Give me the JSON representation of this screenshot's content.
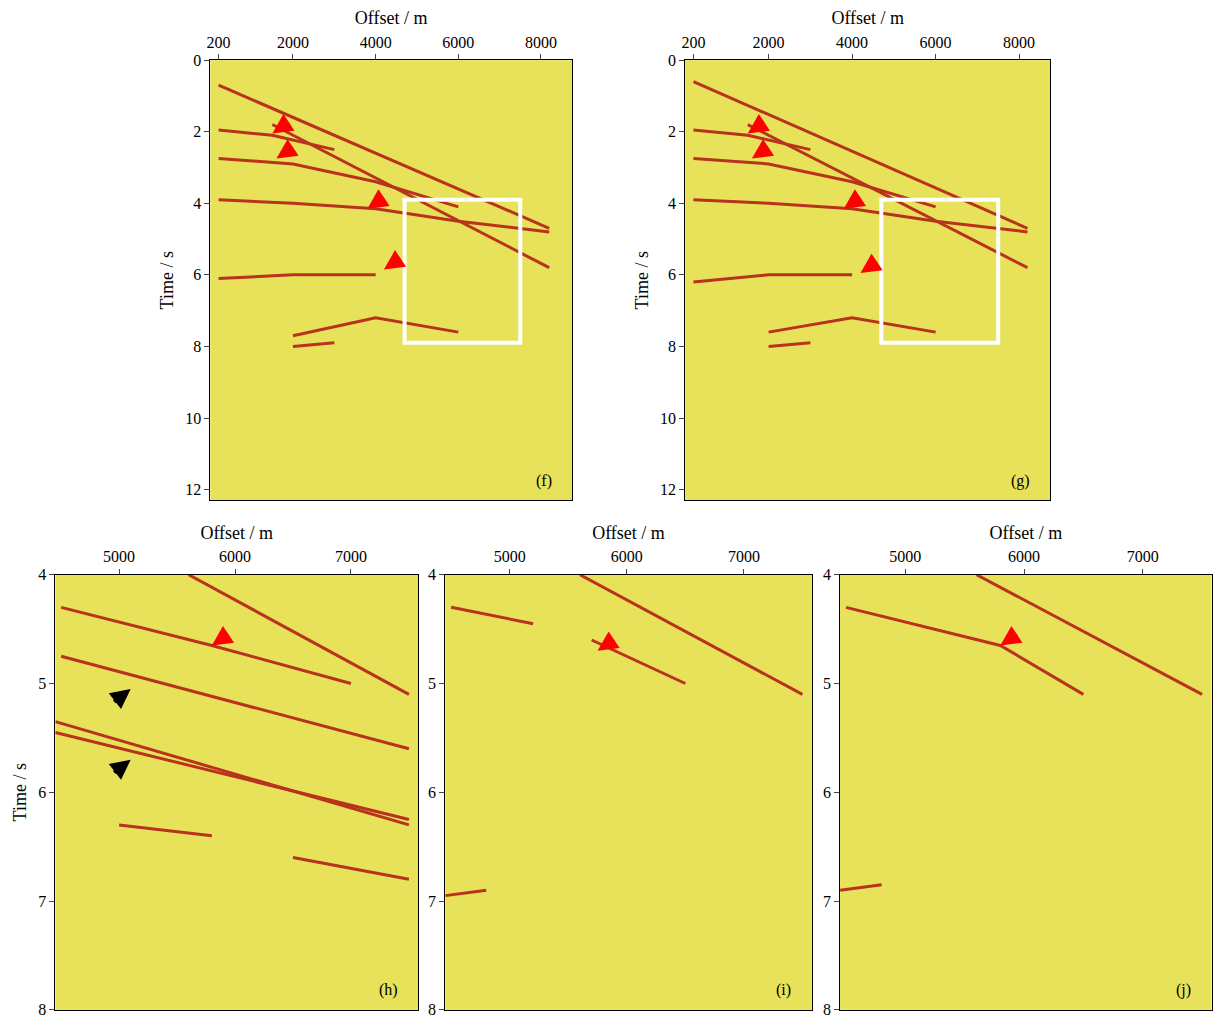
{
  "chart_data": [
    {
      "type": "line",
      "panel": "(f)",
      "xlabel": "Offset / m",
      "ylabel": "Time / s",
      "xlim": [
        0,
        8750
      ],
      "xticks": [
        200,
        2000,
        4000,
        6000,
        8000
      ],
      "ylim": [
        0,
        12.3
      ],
      "yticks": [
        0,
        2,
        4,
        6,
        8,
        10,
        12
      ],
      "color": "#b8321e",
      "series": [
        {
          "x": [
            200,
            8200
          ],
          "y": [
            0.7,
            4.7
          ]
        },
        {
          "x": [
            1500,
            8200
          ],
          "y": [
            1.8,
            5.8
          ]
        },
        {
          "x": [
            200,
            1500,
            3000
          ],
          "y": [
            1.95,
            2.1,
            2.5
          ]
        },
        {
          "x": [
            200,
            2000,
            4000,
            6000
          ],
          "y": [
            2.75,
            2.9,
            3.4,
            4.1
          ]
        },
        {
          "x": [
            200,
            2000,
            4000,
            6000,
            8200
          ],
          "y": [
            3.9,
            4.0,
            4.15,
            4.5,
            4.8
          ]
        },
        {
          "x": [
            200,
            2000,
            4000
          ],
          "y": [
            6.1,
            6.0,
            6.0
          ]
        },
        {
          "x": [
            2000,
            4000,
            6000
          ],
          "y": [
            7.7,
            7.2,
            7.6
          ]
        },
        {
          "x": [
            2000,
            3000
          ],
          "y": [
            8.0,
            7.9
          ]
        }
      ],
      "arrows": [
        {
          "x": 1500,
          "y": 2.05,
          "color": "red"
        },
        {
          "x": 1600,
          "y": 2.75,
          "color": "red"
        },
        {
          "x": 3800,
          "y": 4.15,
          "color": "red"
        },
        {
          "x": 4200,
          "y": 5.85,
          "color": "red"
        }
      ],
      "box": {
        "x": [
          4700,
          7500
        ],
        "y": [
          3.9,
          7.9
        ]
      }
    },
    {
      "type": "line",
      "panel": "(g)",
      "xlabel": "Offset / m",
      "ylabel": "Time / s",
      "xlim": [
        0,
        8750
      ],
      "xticks": [
        200,
        2000,
        4000,
        6000,
        8000
      ],
      "ylim": [
        0,
        12.3
      ],
      "yticks": [
        0,
        2,
        4,
        6,
        8,
        10,
        12
      ],
      "color": "#b8321e",
      "series": [
        {
          "x": [
            200,
            8200
          ],
          "y": [
            0.6,
            4.7
          ]
        },
        {
          "x": [
            1500,
            8200
          ],
          "y": [
            1.8,
            5.8
          ]
        },
        {
          "x": [
            200,
            1500,
            3000
          ],
          "y": [
            1.95,
            2.1,
            2.5
          ]
        },
        {
          "x": [
            200,
            2000,
            4000,
            6000
          ],
          "y": [
            2.75,
            2.9,
            3.4,
            4.1
          ]
        },
        {
          "x": [
            200,
            2000,
            4000,
            6000,
            8200
          ],
          "y": [
            3.9,
            4.0,
            4.15,
            4.5,
            4.8
          ]
        },
        {
          "x": [
            200,
            2000,
            4000
          ],
          "y": [
            6.2,
            6.0,
            6.0
          ]
        },
        {
          "x": [
            2000,
            4000,
            6000
          ],
          "y": [
            7.6,
            7.2,
            7.6
          ]
        },
        {
          "x": [
            2000,
            3000
          ],
          "y": [
            8.0,
            7.9
          ]
        }
      ],
      "arrows": [
        {
          "x": 1500,
          "y": 2.05,
          "color": "red"
        },
        {
          "x": 1600,
          "y": 2.75,
          "color": "red"
        },
        {
          "x": 3800,
          "y": 4.15,
          "color": "red"
        },
        {
          "x": 4200,
          "y": 5.95,
          "color": "red"
        }
      ],
      "box": {
        "x": [
          4700,
          7500
        ],
        "y": [
          3.9,
          7.9
        ]
      }
    },
    {
      "type": "line",
      "panel": "(h)",
      "xlabel": "Offset / m",
      "ylabel": "Time / s",
      "xlim": [
        4450,
        7580
      ],
      "xticks": [
        5000,
        6000,
        7000
      ],
      "ylim": [
        4,
        8
      ],
      "yticks": [
        4,
        5,
        6,
        7,
        8
      ],
      "color": "#b8321e",
      "series": [
        {
          "x": [
            5600,
            7500
          ],
          "y": [
            4.0,
            5.1
          ]
        },
        {
          "x": [
            4500,
            5800,
            7000
          ],
          "y": [
            4.3,
            4.65,
            5.0
          ]
        },
        {
          "x": [
            4500,
            7500
          ],
          "y": [
            4.75,
            5.6
          ]
        },
        {
          "x": [
            4450,
            7500
          ],
          "y": [
            5.35,
            6.3
          ]
        },
        {
          "x": [
            4450,
            7500
          ],
          "y": [
            5.45,
            6.25
          ]
        },
        {
          "x": [
            5000,
            5800
          ],
          "y": [
            6.3,
            6.4
          ]
        },
        {
          "x": [
            6500,
            7500
          ],
          "y": [
            6.6,
            6.8
          ]
        }
      ],
      "arrows": [
        {
          "x": 5800,
          "y": 4.65,
          "color": "red"
        },
        {
          "x": 5100,
          "y": 5.05,
          "color": "black"
        },
        {
          "x": 5100,
          "y": 5.7,
          "color": "black"
        }
      ]
    },
    {
      "type": "line",
      "panel": "(i)",
      "xlabel": "Offset / m",
      "xlim": [
        4450,
        7580
      ],
      "xticks": [
        5000,
        6000,
        7000
      ],
      "ylim": [
        4,
        8
      ],
      "yticks": [
        4,
        5,
        6,
        7,
        8
      ],
      "color": "#b8321e",
      "series": [
        {
          "x": [
            5600,
            7500
          ],
          "y": [
            4.0,
            5.1
          ]
        },
        {
          "x": [
            4500,
            5200
          ],
          "y": [
            4.3,
            4.45
          ]
        },
        {
          "x": [
            5700,
            6500
          ],
          "y": [
            4.6,
            5.0
          ]
        },
        {
          "x": [
            4450,
            4800
          ],
          "y": [
            6.95,
            6.9
          ]
        }
      ],
      "arrows": [
        {
          "x": 5750,
          "y": 4.7,
          "color": "red"
        }
      ]
    },
    {
      "type": "line",
      "panel": "(j)",
      "xlabel": "Offset / m",
      "xlim": [
        4450,
        7580
      ],
      "xticks": [
        5000,
        6000,
        7000
      ],
      "ylim": [
        4,
        8
      ],
      "yticks": [
        4,
        5,
        6,
        7,
        8
      ],
      "color": "#b8321e",
      "series": [
        {
          "x": [
            5600,
            7500
          ],
          "y": [
            4.0,
            5.1
          ]
        },
        {
          "x": [
            4500,
            5800,
            6500
          ],
          "y": [
            4.3,
            4.65,
            5.1
          ]
        },
        {
          "x": [
            4450,
            4800
          ],
          "y": [
            6.9,
            6.85
          ]
        }
      ],
      "arrows": [
        {
          "x": 5800,
          "y": 4.65,
          "color": "red"
        }
      ]
    }
  ]
}
